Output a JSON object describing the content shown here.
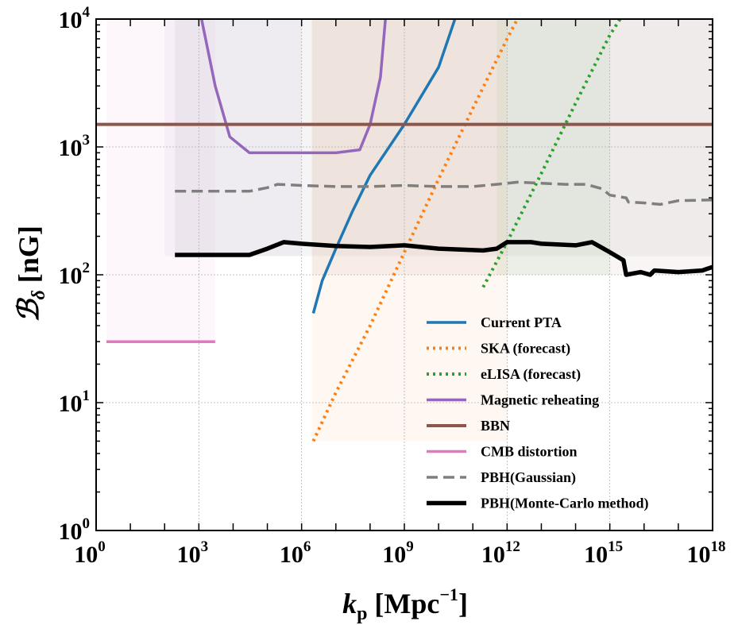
{
  "chart_data": {
    "type": "line",
    "title": "",
    "xlabel": {
      "base": "k",
      "sub": "p",
      "unit_open": "[Mpc",
      "unit_exp": "−1",
      "unit_close": "]"
    },
    "ylabel": {
      "symbol": "ℬ",
      "sub": "δ",
      "unit": "[nG]"
    },
    "x_scale": "log",
    "y_scale": "log",
    "xlim": [
      1,
      1e+18
    ],
    "ylim": [
      1,
      10000
    ],
    "x_ticks": [
      {
        "base": "10",
        "exp": "0",
        "value": 1
      },
      {
        "base": "10",
        "exp": "3",
        "value": 1000.0
      },
      {
        "base": "10",
        "exp": "6",
        "value": 1000000.0
      },
      {
        "base": "10",
        "exp": "9",
        "value": 1000000000.0
      },
      {
        "base": "10",
        "exp": "12",
        "value": 1000000000000.0
      },
      {
        "base": "10",
        "exp": "15",
        "value": 1000000000000000.0
      },
      {
        "base": "10",
        "exp": "18",
        "value": 1e+18
      }
    ],
    "y_ticks": [
      {
        "base": "10",
        "exp": "0",
        "value": 1
      },
      {
        "base": "10",
        "exp": "1",
        "value": 10
      },
      {
        "base": "10",
        "exp": "2",
        "value": 100
      },
      {
        "base": "10",
        "exp": "3",
        "value": 1000
      },
      {
        "base": "10",
        "exp": "4",
        "value": 10000
      }
    ],
    "grid": true,
    "legend_position": "bottom-right",
    "shaded_regions": [
      {
        "xrange": [
          2,
          3000.0
        ],
        "yrange": [
          30,
          10000
        ],
        "color": "#e377c2",
        "opacity": 0.06
      },
      {
        "xrange": [
          200.0,
          1e+18
        ],
        "yrange": [
          140,
          10000
        ],
        "color": "#7f7f7f",
        "opacity": 0.08
      },
      {
        "xrange": [
          100.0,
          1000000.0
        ],
        "yrange": [
          140,
          10000
        ],
        "color": "#9467bd",
        "opacity": 0.06
      },
      {
        "xrange": [
          2000000.0,
          1e+18
        ],
        "yrange": [
          100,
          10000
        ],
        "color": "#8c564b",
        "opacity": 0.06
      },
      {
        "xrange": [
          2000000.0,
          1000000000000.0
        ],
        "yrange": [
          5,
          10000
        ],
        "color": "#ff7f0e",
        "opacity": 0.06
      },
      {
        "xrange": [
          500000000000.0,
          1000000000000000.0
        ],
        "yrange": [
          100,
          10000
        ],
        "color": "#2ca02c",
        "opacity": 0.06
      }
    ],
    "series": [
      {
        "name": "Current PTA",
        "color": "#1f77b4",
        "dash": "solid",
        "width": 3.5,
        "points": [
          [
            2200000.0,
            50
          ],
          [
            4000000.0,
            90
          ],
          [
            10000000.0,
            160
          ],
          [
            30000000.0,
            310
          ],
          [
            100000000.0,
            600
          ],
          [
            1000000000.0,
            1500
          ],
          [
            10000000000.0,
            4200
          ],
          [
            30000000000.0,
            10000
          ]
        ]
      },
      {
        "name": "SKA (forecast)",
        "color": "#ff7f0e",
        "dash": "dotted",
        "width": 4,
        "points": [
          [
            2200000.0,
            5
          ],
          [
            10000000.0,
            12
          ],
          [
            100000000.0,
            40
          ],
          [
            1000000000.0,
            150
          ],
          [
            10000000000.0,
            560
          ],
          [
            100000000000.0,
            2000
          ],
          [
            1000000000000.0,
            7000
          ],
          [
            2000000000000.0,
            10000
          ]
        ]
      },
      {
        "name": "eLISA (forecast)",
        "color": "#2ca02c",
        "dash": "dotted",
        "width": 4,
        "points": [
          [
            200000000000.0,
            80
          ],
          [
            1000000000000.0,
            180
          ],
          [
            10000000000000.0,
            620
          ],
          [
            100000000000000.0,
            2200
          ],
          [
            1000000000000000.0,
            7500
          ],
          [
            2000000000000000.0,
            10000
          ]
        ]
      },
      {
        "name": "Magnetic reheating",
        "color": "#9467bd",
        "dash": "solid",
        "width": 3.5,
        "points": [
          [
            1200.0,
            10000
          ],
          [
            3000.0,
            3000
          ],
          [
            8000.0,
            1200
          ],
          [
            30000.0,
            900
          ],
          [
            100000.0,
            900
          ],
          [
            1000000.0,
            900
          ],
          [
            10000000.0,
            900
          ],
          [
            50000000.0,
            950
          ],
          [
            100000000.0,
            1500
          ],
          [
            200000000.0,
            3500
          ],
          [
            280000000.0,
            10000
          ]
        ]
      },
      {
        "name": "BBN",
        "color": "#8c564b",
        "dash": "solid",
        "width": 4,
        "points": [
          [
            1,
            1500
          ],
          [
            1e+18,
            1500
          ]
        ]
      },
      {
        "name": "CMB distortion",
        "color": "#e377c2",
        "dash": "solid",
        "width": 3.5,
        "points": [
          [
            2,
            30
          ],
          [
            3000.0,
            30
          ]
        ]
      },
      {
        "name": "PBH(Gaussian)",
        "color": "#7f7f7f",
        "dash": "dashed",
        "width": 3.5,
        "points": [
          [
            200.0,
            450
          ],
          [
            30000.0,
            450
          ],
          [
            100000.0,
            480
          ],
          [
            200000.0,
            510
          ],
          [
            1000000.0,
            500
          ],
          [
            10000000.0,
            490
          ],
          [
            100000000.0,
            490
          ],
          [
            1000000000.0,
            500
          ],
          [
            10000000000.0,
            490
          ],
          [
            100000000000.0,
            490
          ],
          [
            500000000000.0,
            510
          ],
          [
            2000000000000.0,
            530
          ],
          [
            10000000000000.0,
            520
          ],
          [
            50000000000000.0,
            510
          ],
          [
            200000000000000.0,
            510
          ],
          [
            600000000000000.0,
            470
          ],
          [
            1000000000000000.0,
            420
          ],
          [
            3000000000000000.0,
            400
          ],
          [
            3500000000000000.0,
            370
          ],
          [
            1e+16,
            365
          ],
          [
            3e+16,
            355
          ],
          [
            1e+17,
            380
          ],
          [
            1e+18,
            385
          ]
        ]
      },
      {
        "name": "PBH(Monte-Carlo method)",
        "color": "#000000",
        "dash": "solid",
        "width": 5.5,
        "points": [
          [
            200.0,
            143
          ],
          [
            30000.0,
            143
          ],
          [
            100000.0,
            160
          ],
          [
            300000.0,
            180
          ],
          [
            1000000.0,
            175
          ],
          [
            10000000.0,
            168
          ],
          [
            100000000.0,
            165
          ],
          [
            1000000000.0,
            170
          ],
          [
            10000000000.0,
            160
          ],
          [
            200000000000.0,
            155
          ],
          [
            500000000000.0,
            160
          ],
          [
            1000000000000.0,
            180
          ],
          [
            5000000000000.0,
            180
          ],
          [
            10000000000000.0,
            175
          ],
          [
            100000000000000.0,
            170
          ],
          [
            300000000000000.0,
            180
          ],
          [
            1000000000000000.0,
            150
          ],
          [
            2500000000000000.0,
            130
          ],
          [
            3000000000000000.0,
            100
          ],
          [
            8000000000000000.0,
            105
          ],
          [
            1.5e+16,
            100
          ],
          [
            2e+16,
            108
          ],
          [
            1e+17,
            105
          ],
          [
            5e+17,
            108
          ],
          [
            1e+18,
            115
          ]
        ]
      }
    ]
  }
}
